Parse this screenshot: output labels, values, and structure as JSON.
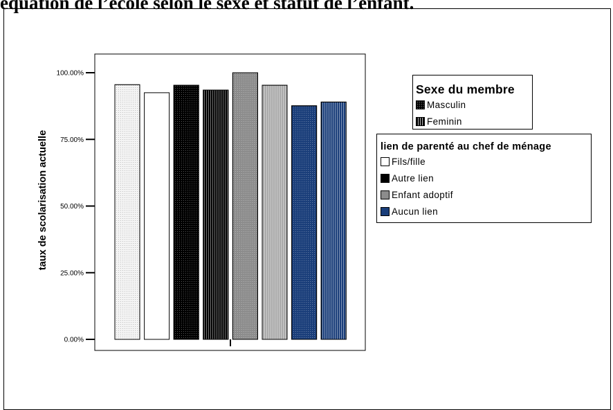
{
  "page_heading": "équation de l’école selon le sexe et statut de l’enfant.",
  "colors": {
    "fils_fille": "#ffffff",
    "autre_lien": "#000000",
    "enfant_adoptif": "#8c8c8c",
    "aucun_lien": "#1a3e7a"
  },
  "chart_data": {
    "type": "bar",
    "ylabel": "taux de scolarisation actuelle",
    "xlabel": "",
    "ylim": [
      0,
      1.0
    ],
    "yticks": [
      "0.00%",
      "25.00%",
      "50.00%",
      "75.00%",
      "100.00%"
    ],
    "categories": [
      ""
    ],
    "bars": [
      {
        "sex": "Feminin",
        "link": "Fils/fille",
        "value": 0.955,
        "fill": "#f2f2f2",
        "pattern": "dots"
      },
      {
        "sex": "Masculin",
        "link": "Fils/fille",
        "value": 0.925,
        "fill": "#ffffff",
        "pattern": "none"
      },
      {
        "sex": "Masculin",
        "link": "Autre lien",
        "value": 0.953,
        "fill": "#000000",
        "pattern": "dots-dark"
      },
      {
        "sex": "Feminin",
        "link": "Autre lien",
        "value": 0.935,
        "fill": "#000000",
        "pattern": "vlines"
      },
      {
        "sex": "Masculin",
        "link": "Enfant adoptif",
        "value": 1.0,
        "fill": "#8c8c8c",
        "pattern": "dots-dark"
      },
      {
        "sex": "Feminin",
        "link": "Enfant adoptif",
        "value": 0.953,
        "fill": "#a8a8a8",
        "pattern": "vlines"
      },
      {
        "sex": "Masculin",
        "link": "Aucun lien",
        "value": 0.876,
        "fill": "#1a3e7a",
        "pattern": "dots-dark"
      },
      {
        "sex": "Feminin",
        "link": "Aucun lien",
        "value": 0.89,
        "fill": "#1a3e7a",
        "pattern": "vlines"
      }
    ],
    "legends": [
      {
        "title": "Sexe du membre",
        "items": [
          {
            "label": "Masculin",
            "fill": "#000000",
            "pattern": "dots-dark"
          },
          {
            "label": "Feminin",
            "fill": "#000000",
            "pattern": "vlines"
          }
        ]
      },
      {
        "title": "lien de parenté au chef de ménage",
        "items": [
          {
            "label": "Fils/fille",
            "fill": "#ffffff"
          },
          {
            "label": "Autre lien",
            "fill": "#000000"
          },
          {
            "label": "Enfant adoptif",
            "fill": "#8c8c8c"
          },
          {
            "label": "Aucun lien",
            "fill": "#1a3e7a"
          }
        ]
      }
    ],
    "grid": false
  }
}
